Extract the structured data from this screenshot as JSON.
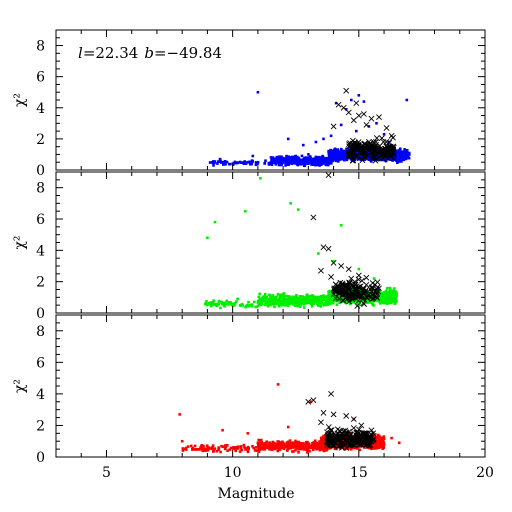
{
  "annotation": {
    "l_symbol": "l",
    "l_value": "=22.34",
    "b_symbol": "b",
    "b_value": "=−49.84"
  },
  "chart_data": {
    "type": "scatter",
    "xlabel": "Magnitude",
    "ylabel": "χ²",
    "xlim": [
      3,
      20
    ],
    "x_ticks": [
      5,
      10,
      15,
      20
    ],
    "y_ticks": [
      0,
      2,
      4,
      6,
      8
    ],
    "panels": [
      {
        "ylim": [
          0,
          9
        ],
        "y_tick_labels": [
          "0",
          "2",
          "4",
          "6",
          "8"
        ],
        "series": [
          {
            "marker": "square",
            "color": "#0000ff",
            "values": [
              [
                9.2,
                0.5
              ],
              [
                9.5,
                0.7
              ],
              [
                10.0,
                0.4
              ],
              [
                10.5,
                0.5
              ],
              [
                10.8,
                0.9
              ],
              [
                11.0,
                5.0
              ],
              [
                11.3,
                0.6
              ],
              [
                11.6,
                0.8
              ],
              [
                12.0,
                0.7
              ],
              [
                12.2,
                2.0
              ],
              [
                12.5,
                0.9
              ],
              [
                12.8,
                1.6
              ],
              [
                13.0,
                1.0
              ],
              [
                13.3,
                1.8
              ],
              [
                13.6,
                2.0
              ],
              [
                13.9,
                2.2
              ],
              [
                14.1,
                4.3
              ],
              [
                14.3,
                2.9
              ],
              [
                14.5,
                3.9
              ],
              [
                14.7,
                4.5
              ],
              [
                14.9,
                2.5
              ],
              [
                15.0,
                4.8
              ],
              [
                15.2,
                4.4
              ],
              [
                15.4,
                2.8
              ],
              [
                15.7,
                3.0
              ],
              [
                16.0,
                2.3
              ],
              [
                16.2,
                1.8
              ],
              [
                16.5,
                1.2
              ],
              [
                16.9,
                4.5
              ],
              [
                17.0,
                1.0
              ]
            ],
            "clusters": [
              {
                "x_range": [
                  9.0,
                  11.5
                ],
                "y_center": 0.45,
                "y_spread": 0.12,
                "count": 60
              },
              {
                "x_range": [
                  11.5,
                  14.0
                ],
                "y_center": 0.6,
                "y_spread": 0.22,
                "count": 380
              },
              {
                "x_range": [
                  13.8,
                  17.0
                ],
                "y_center": 0.95,
                "y_spread": 0.32,
                "count": 900
              }
            ]
          },
          {
            "marker": "cross",
            "color": "#000000",
            "values": [
              [
                14.2,
                4.2
              ],
              [
                14.4,
                4.0
              ],
              [
                14.5,
                5.1
              ],
              [
                14.8,
                3.2
              ],
              [
                14.9,
                4.3
              ],
              [
                15.0,
                3.5
              ],
              [
                15.2,
                3.6
              ],
              [
                15.3,
                2.9
              ],
              [
                15.5,
                3.3
              ],
              [
                15.8,
                3.4
              ],
              [
                16.1,
                2.7
              ],
              [
                16.3,
                2.2
              ],
              [
                14.0,
                2.8
              ],
              [
                14.6,
                3.7
              ]
            ],
            "clusters": [
              {
                "x_range": [
                  14.6,
                  16.4
                ],
                "y_center": 1.3,
                "y_spread": 0.55,
                "count": 180
              }
            ]
          }
        ]
      },
      {
        "ylim": [
          0,
          9
        ],
        "y_tick_labels": [
          "0",
          "2",
          "4",
          "6",
          "8"
        ],
        "series": [
          {
            "marker": "square",
            "color": "#00ee00",
            "values": [
              [
                9.0,
                4.8
              ],
              [
                9.3,
                5.8
              ],
              [
                10.5,
                6.5
              ],
              [
                11.1,
                8.6
              ],
              [
                12.3,
                7.0
              ],
              [
                12.6,
                6.6
              ],
              [
                14.3,
                5.6
              ],
              [
                15.0,
                2.8
              ],
              [
                13.4,
                3.8
              ],
              [
                14.0,
                3.3
              ],
              [
                15.6,
                2.2
              ],
              [
                10.2,
                0.9
              ],
              [
                11.8,
                1.2
              ]
            ],
            "clusters": [
              {
                "x_range": [
                  8.9,
                  11.0
                ],
                "y_center": 0.55,
                "y_spread": 0.18,
                "count": 70
              },
              {
                "x_range": [
                  11.0,
                  14.0
                ],
                "y_center": 0.8,
                "y_spread": 0.3,
                "count": 380
              },
              {
                "x_range": [
                  13.8,
                  16.5
                ],
                "y_center": 1.05,
                "y_spread": 0.38,
                "count": 700
              }
            ]
          },
          {
            "marker": "cross",
            "color": "#000000",
            "values": [
              [
                13.8,
                8.8
              ],
              [
                13.2,
                6.1
              ],
              [
                13.6,
                4.2
              ],
              [
                13.8,
                4.1
              ],
              [
                14.0,
                3.2
              ],
              [
                13.5,
                2.7
              ],
              [
                14.3,
                3.0
              ],
              [
                14.6,
                2.8
              ],
              [
                14.7,
                2.2
              ],
              [
                15.0,
                2.4
              ],
              [
                15.3,
                1.8
              ],
              [
                13.9,
                2.3
              ]
            ],
            "clusters": [
              {
                "x_range": [
                  14.0,
                  15.8
                ],
                "y_center": 1.35,
                "y_spread": 0.6,
                "count": 150
              }
            ]
          }
        ]
      },
      {
        "ylim": [
          0,
          9
        ],
        "y_tick_labels": [
          "0",
          "2",
          "4",
          "6",
          "8"
        ],
        "series": [
          {
            "marker": "square",
            "color": "#ff0000",
            "values": [
              [
                7.9,
                2.7
              ],
              [
                8.0,
                1.0
              ],
              [
                9.6,
                1.7
              ],
              [
                11.8,
                4.6
              ],
              [
                13.1,
                3.5
              ],
              [
                12.2,
                1.9
              ],
              [
                10.6,
                1.5
              ],
              [
                14.8,
                2.4
              ],
              [
                16.3,
                1.2
              ],
              [
                16.6,
                0.9
              ],
              [
                9.8,
                0.4
              ]
            ],
            "clusters": [
              {
                "x_range": [
                  8.0,
                  11.0
                ],
                "y_center": 0.55,
                "y_spread": 0.18,
                "count": 90
              },
              {
                "x_range": [
                  11.0,
                  13.8
                ],
                "y_center": 0.7,
                "y_spread": 0.25,
                "count": 380
              },
              {
                "x_range": [
                  13.5,
                  16.0
                ],
                "y_center": 0.95,
                "y_spread": 0.35,
                "count": 850
              }
            ]
          },
          {
            "marker": "cross",
            "color": "#000000",
            "values": [
              [
                13.0,
                3.5
              ],
              [
                13.2,
                3.6
              ],
              [
                13.9,
                4.0
              ],
              [
                13.6,
                2.8
              ],
              [
                14.0,
                2.7
              ],
              [
                14.5,
                2.6
              ],
              [
                14.8,
                2.4
              ],
              [
                13.5,
                2.2
              ],
              [
                15.1,
                2.0
              ]
            ],
            "clusters": [
              {
                "x_range": [
                  13.7,
                  15.6
                ],
                "y_center": 1.2,
                "y_spread": 0.45,
                "count": 200
              }
            ]
          }
        ]
      }
    ]
  }
}
